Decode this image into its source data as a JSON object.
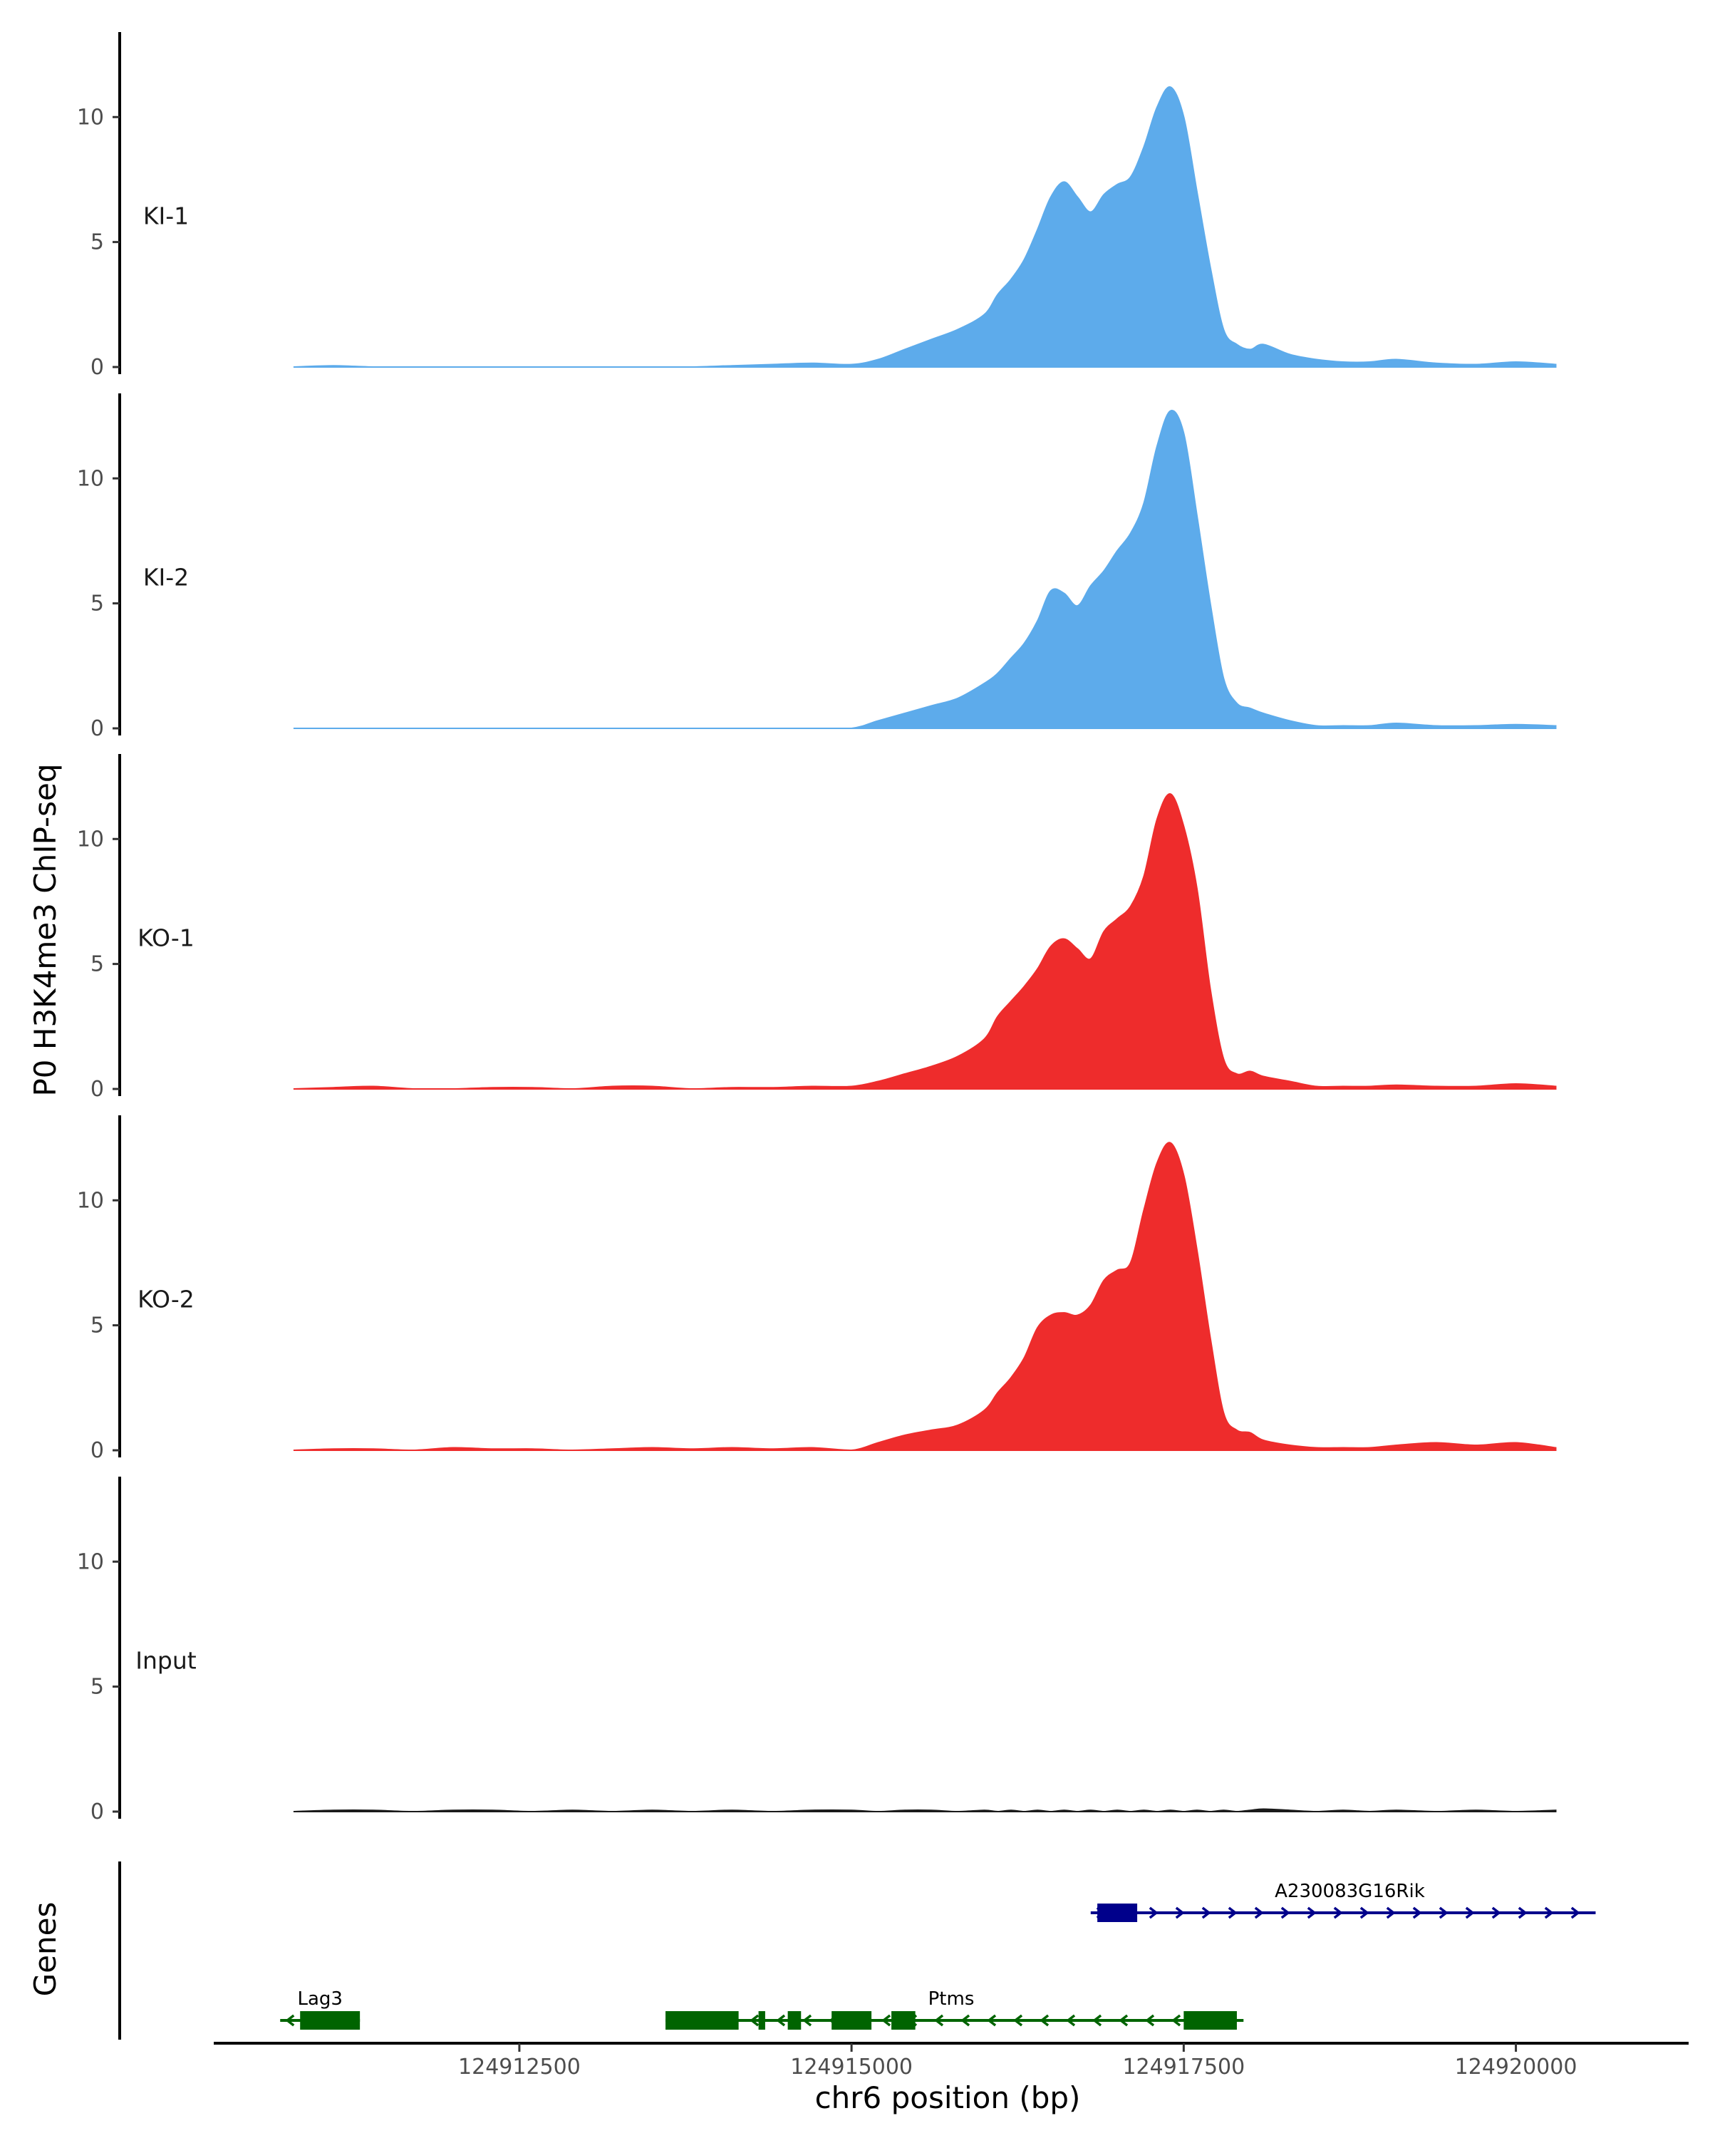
{
  "chart_data": {
    "type": "area",
    "ylabel": "P0 H3K4me3 ChIP-seq",
    "xlabel": "chr6 position (bp)",
    "gene_track_label": "Genes",
    "xlim": [
      124910200,
      124921300
    ],
    "ylim": [
      0,
      13.4
    ],
    "y_ticks": [
      0,
      5,
      10
    ],
    "y_tick_labels": [
      "0",
      "5",
      "10"
    ],
    "x_ticks": [
      124912500,
      124915000,
      124917500,
      124920000
    ],
    "x_tick_labels": [
      "124912500",
      "124915000",
      "124917500",
      "124920000"
    ],
    "x": [
      124910800,
      124911100,
      124911400,
      124911700,
      124912000,
      124912300,
      124912600,
      124912900,
      124913200,
      124913500,
      124913800,
      124914100,
      124914400,
      124914700,
      124915000,
      124915200,
      124915400,
      124915600,
      124915800,
      124916000,
      124916100,
      124916200,
      124916300,
      124916400,
      124916500,
      124916600,
      124916700,
      124916800,
      124916900,
      124917000,
      124917100,
      124917200,
      124917300,
      124917400,
      124917500,
      124917600,
      124917700,
      124917800,
      124917900,
      124918000,
      124918100,
      124918300,
      124918500,
      124918700,
      124918900,
      124919100,
      124919400,
      124919700,
      124920000,
      124920300
    ],
    "series": [
      {
        "name": "KI-1",
        "color": "#5dabeb",
        "values": [
          0,
          0.05,
          0,
          0,
          0,
          0,
          0,
          0,
          0,
          0,
          0,
          0.05,
          0.1,
          0.15,
          0.1,
          0.3,
          0.7,
          1.1,
          1.5,
          2.1,
          2.9,
          3.5,
          4.3,
          5.5,
          6.8,
          7.4,
          6.8,
          6.2,
          6.9,
          7.3,
          7.6,
          8.8,
          10.4,
          11.2,
          10.0,
          7.0,
          4.0,
          1.5,
          0.9,
          0.7,
          0.9,
          0.5,
          0.3,
          0.2,
          0.2,
          0.3,
          0.15,
          0.1,
          0.2,
          0.1
        ]
      },
      {
        "name": "KI-2",
        "color": "#5dabeb",
        "values": [
          0,
          0,
          0,
          0,
          0,
          0,
          0,
          0,
          0,
          0,
          0,
          0,
          0,
          0,
          0,
          0.3,
          0.6,
          0.9,
          1.2,
          1.8,
          2.2,
          2.8,
          3.4,
          4.3,
          5.5,
          5.4,
          4.9,
          5.7,
          6.3,
          7.1,
          7.8,
          9.0,
          11.3,
          12.7,
          11.8,
          8.5,
          5.0,
          2.0,
          1.0,
          0.8,
          0.6,
          0.3,
          0.1,
          0.1,
          0.1,
          0.2,
          0.1,
          0.1,
          0.15,
          0.1
        ]
      },
      {
        "name": "KO-1",
        "color": "#ee2c2c",
        "values": [
          0,
          0.05,
          0.1,
          0,
          0,
          0.05,
          0.05,
          0,
          0.1,
          0.1,
          0,
          0.05,
          0.05,
          0.1,
          0.1,
          0.3,
          0.6,
          0.9,
          1.3,
          2.0,
          2.9,
          3.5,
          4.1,
          4.8,
          5.7,
          6.0,
          5.6,
          5.2,
          6.3,
          6.8,
          7.3,
          8.5,
          10.8,
          11.8,
          10.5,
          8.0,
          4.0,
          1.2,
          0.6,
          0.7,
          0.5,
          0.3,
          0.1,
          0.1,
          0.1,
          0.15,
          0.1,
          0.1,
          0.2,
          0.1
        ]
      },
      {
        "name": "KO-2",
        "color": "#ee2c2c",
        "values": [
          0,
          0.05,
          0.05,
          0,
          0.1,
          0.05,
          0.05,
          0,
          0.05,
          0.1,
          0.05,
          0.1,
          0.05,
          0.1,
          0,
          0.3,
          0.6,
          0.8,
          1.0,
          1.6,
          2.3,
          2.9,
          3.7,
          4.9,
          5.4,
          5.5,
          5.4,
          5.8,
          6.8,
          7.2,
          7.5,
          9.6,
          11.5,
          12.3,
          11.0,
          8.0,
          4.5,
          1.5,
          0.8,
          0.7,
          0.4,
          0.2,
          0.1,
          0.1,
          0.1,
          0.2,
          0.3,
          0.2,
          0.3,
          0.1
        ]
      },
      {
        "name": "Input",
        "color": "#1a1a1a",
        "values": [
          0,
          0.05,
          0.05,
          0,
          0.05,
          0.05,
          0,
          0.05,
          0,
          0.05,
          0,
          0.05,
          0,
          0.05,
          0.05,
          0,
          0.05,
          0.05,
          0,
          0.05,
          0,
          0.05,
          0,
          0.05,
          0,
          0.05,
          0,
          0.05,
          0,
          0.05,
          0,
          0.05,
          0,
          0.05,
          0,
          0.05,
          0,
          0.05,
          0,
          0.05,
          0.1,
          0.05,
          0,
          0.05,
          0,
          0.05,
          0,
          0.05,
          0,
          0.05
        ]
      }
    ],
    "genes": [
      {
        "name": "A230083G16Rik",
        "strand": "+",
        "color": "#00008b",
        "start": 124916800,
        "end": 124920600,
        "exons": [
          [
            124916850,
            124917150
          ]
        ]
      },
      {
        "name": "Lag3",
        "strand": "-",
        "color": "#006400",
        "start": 124910700,
        "end": 124911300,
        "exons": [
          [
            124910850,
            124911300
          ]
        ]
      },
      {
        "name": "Ptms",
        "strand": "-",
        "color": "#006400",
        "start": 124913600,
        "end": 124917950,
        "exons": [
          [
            124913600,
            124914150
          ],
          [
            124914300,
            124914350
          ],
          [
            124914520,
            124914620
          ],
          [
            124914850,
            124915150
          ],
          [
            124915300,
            124915480
          ],
          [
            124917500,
            124917900
          ]
        ]
      }
    ]
  }
}
